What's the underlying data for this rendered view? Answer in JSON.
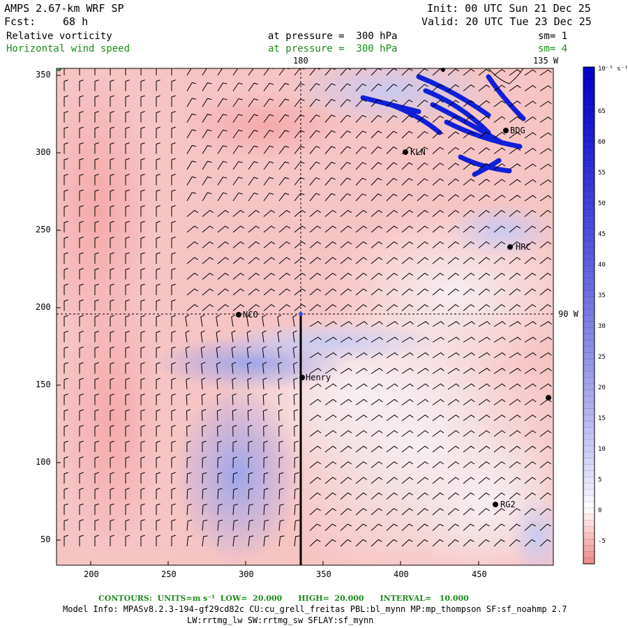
{
  "header": {
    "model": "AMPS 2.67-km WRF SP",
    "fcst_label": "Fcst:",
    "fcst_value": "68 h",
    "init": "Init: 00 UTC Sun 21 Dec 25",
    "valid": "Valid: 20 UTC Tue 23 Dec 25"
  },
  "fields": [
    {
      "name": "Relative vorticity",
      "pressure": "at pressure =  300 hPa",
      "smooth": "sm= 1",
      "color": "#000000"
    },
    {
      "name": "Horizontal wind speed",
      "pressure": "at pressure =  300 hPa",
      "smooth": "sm= 4",
      "color": "#1a8c1a"
    }
  ],
  "map": {
    "x_ticks": [
      "200",
      "250",
      "300",
      "350",
      "400",
      "450"
    ],
    "y_ticks": [
      "350",
      "300",
      "250",
      "200",
      "150",
      "100",
      "50"
    ],
    "meridians": [
      {
        "label": "180"
      },
      {
        "label": "135 W"
      },
      {
        "label": "90 W"
      }
    ],
    "stations": [
      {
        "name": "BDG"
      },
      {
        "name": "KLN"
      },
      {
        "name": "HRC"
      },
      {
        "name": "NCO"
      },
      {
        "name": "Henry"
      },
      {
        "name": "RG2"
      },
      {
        "name": ""
      }
    ]
  },
  "colorbar": {
    "unit": "10⁻⁵ s⁻¹",
    "labels": [
      "65",
      "60",
      "55",
      "50",
      "45",
      "40",
      "35",
      "30",
      "25",
      "20",
      "15",
      "10",
      "5",
      "0",
      "-5"
    ],
    "low_color": "#f08080",
    "high_color": "#0000cc"
  },
  "footer": {
    "contours": "CONTOURS:  UNITS=m s⁻¹  LOW=  20.000      HIGH=  20.000      INTERVAL=   10.000",
    "model_info": "Model Info: MPASv8.2.3-194-gf29cd82c CU:cu_grell_freitas PBL:bl_mynn MP:mp_thompson SF:sf_noahmp 2.7",
    "model_info2": "LW:rrtmg_lw SW:rrtmg_sw SFLAY:sf_mynn"
  }
}
